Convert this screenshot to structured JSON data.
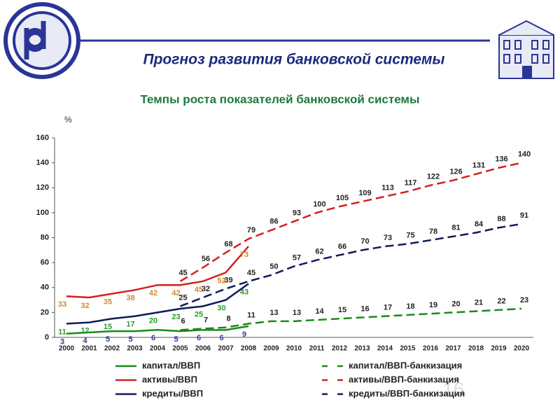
{
  "slide_title": "Прогноз развития банковской системы",
  "page_number": "16",
  "chart_data": {
    "type": "line",
    "title": "Темпы роста показателей банковской системы",
    "y_unit": "%",
    "categories": [
      "2000",
      "2001",
      "2002",
      "2003",
      "2004",
      "2005",
      "2006",
      "2007",
      "2008",
      "2009",
      "2010",
      "2011",
      "2012",
      "2013",
      "2014",
      "2015",
      "2016",
      "2017",
      "2018",
      "2019",
      "2020"
    ],
    "ylim": [
      0,
      160
    ],
    "yticks": [
      0,
      20,
      40,
      60,
      80,
      100,
      120,
      140,
      160
    ],
    "grid": false,
    "legend": "bottom",
    "series": [
      {
        "name": "капитал/ВВП",
        "color": "#1a8a1a",
        "label_color": "#2a3f9a",
        "dashed": false,
        "values": [
          3,
          4,
          5,
          5,
          6,
          5,
          6,
          6,
          9,
          null,
          null,
          null,
          null,
          null,
          null,
          null,
          null,
          null,
          null,
          null,
          null
        ]
      },
      {
        "name": "капитал/ВВП-банкизация",
        "color": "#1a8a1a",
        "label_color": "#222222",
        "dashed": true,
        "values": [
          null,
          null,
          null,
          null,
          null,
          6,
          7,
          8,
          11,
          13,
          13,
          14,
          15,
          16,
          17,
          18,
          19,
          20,
          21,
          22,
          23
        ]
      },
      {
        "name": "активы/ВВП",
        "color": "#d42020",
        "label_color": "#d08a2a",
        "dashed": false,
        "values": [
          33,
          32,
          35,
          38,
          42,
          42,
          45,
          52,
          73,
          null,
          null,
          null,
          null,
          null,
          null,
          null,
          null,
          null,
          null,
          null,
          null
        ]
      },
      {
        "name": "активы/ВВП-банкизация",
        "color": "#d42020",
        "label_color": "#222222",
        "dashed": true,
        "values": [
          null,
          null,
          null,
          null,
          null,
          45,
          56,
          68,
          79,
          86,
          93,
          100,
          105,
          109,
          113,
          117,
          122,
          126,
          131,
          136,
          140
        ]
      },
      {
        "name": "кредиты/ВВП",
        "color": "#101a5a",
        "label_color": "#2a9a2a",
        "dashed": false,
        "values": [
          11,
          12,
          15,
          17,
          20,
          23,
          25,
          30,
          43,
          null,
          null,
          null,
          null,
          null,
          null,
          null,
          null,
          null,
          null,
          null,
          null
        ]
      },
      {
        "name": "кредиты/ВВП-банкизация",
        "color": "#101a5a",
        "label_color": "#222222",
        "dashed": true,
        "values": [
          null,
          null,
          null,
          null,
          null,
          25,
          32,
          39,
          45,
          50,
          57,
          62,
          66,
          70,
          73,
          75,
          78,
          81,
          84,
          88,
          91
        ]
      }
    ]
  }
}
